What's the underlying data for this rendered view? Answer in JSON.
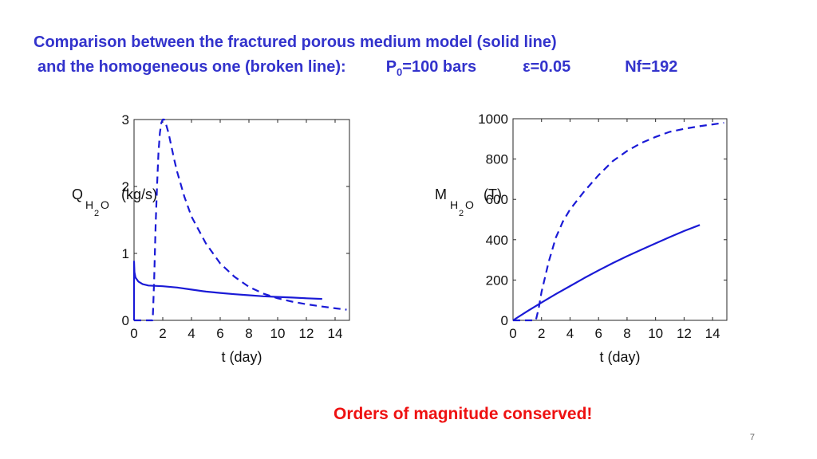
{
  "title": {
    "line1": "Comparison between the fractured porous medium model (solid line)",
    "line2": "and the homogeneous one (broken line):",
    "param_p_prefix": "P",
    "param_p_sub": "0",
    "param_p_suffix": "=100 bars",
    "param_eps": "ε=0.05",
    "param_nf": "Nf=192"
  },
  "footer_note": "Orders of magnitude conserved!",
  "slide_number": "7",
  "colors": {
    "title": "#3333cc",
    "series": "#1a1ad6",
    "note": "#ee1111"
  },
  "chart_data": [
    {
      "type": "line",
      "ylabel_main": "Q",
      "ylabel_sub1": "H",
      "ylabel_sub2": "2",
      "ylabel_sub3": "O",
      "ylabel_unit": "(kg/s)",
      "xlabel": "t (day)",
      "xlim": [
        0,
        15
      ],
      "ylim": [
        0,
        3
      ],
      "xticks": [
        0,
        2,
        4,
        6,
        8,
        10,
        12,
        14
      ],
      "yticks": [
        0,
        1,
        2,
        3
      ],
      "series": [
        {
          "name": "fractured porous medium model",
          "style": "solid",
          "x": [
            0,
            0,
            0.03,
            0.1,
            0.3,
            0.6,
            1,
            2,
            3,
            4,
            5,
            6,
            7,
            8,
            9,
            10,
            11,
            12,
            13.1
          ],
          "y": [
            0,
            0.88,
            0.72,
            0.64,
            0.58,
            0.54,
            0.52,
            0.51,
            0.49,
            0.46,
            0.43,
            0.41,
            0.39,
            0.375,
            0.36,
            0.35,
            0.34,
            0.33,
            0.32
          ]
        },
        {
          "name": "homogeneous model",
          "style": "dashed",
          "x": [
            0,
            1.3,
            1.4,
            1.5,
            1.6,
            1.7,
            1.8,
            1.9,
            2.0,
            2.1,
            2.2,
            2.4,
            2.6,
            2.8,
            3.0,
            3.5,
            4,
            5,
            6,
            7,
            8,
            9,
            10,
            11,
            12,
            13,
            14,
            14.8
          ],
          "y": [
            0,
            0,
            0.6,
            1.4,
            2.0,
            2.5,
            2.8,
            2.95,
            3.0,
            3.0,
            2.95,
            2.8,
            2.6,
            2.4,
            2.22,
            1.85,
            1.55,
            1.15,
            0.85,
            0.65,
            0.5,
            0.4,
            0.33,
            0.28,
            0.24,
            0.21,
            0.18,
            0.16
          ]
        }
      ]
    },
    {
      "type": "line",
      "ylabel_main": "M",
      "ylabel_sub1": "H",
      "ylabel_sub2": "2",
      "ylabel_sub3": "O",
      "ylabel_unit": "(T)",
      "xlabel": "t (day)",
      "xlim": [
        0,
        15
      ],
      "ylim": [
        0,
        1000
      ],
      "xticks": [
        0,
        2,
        4,
        6,
        8,
        10,
        12,
        14
      ],
      "yticks": [
        0,
        200,
        400,
        600,
        800,
        1000
      ],
      "series": [
        {
          "name": "fractured porous medium model",
          "style": "solid",
          "x": [
            0,
            1,
            2,
            3,
            4,
            5,
            6,
            7,
            8,
            9,
            10,
            11,
            12,
            13.1
          ],
          "y": [
            0,
            45,
            88,
            130,
            170,
            210,
            248,
            284,
            318,
            350,
            382,
            413,
            443,
            473
          ]
        },
        {
          "name": "homogeneous model",
          "style": "dashed",
          "x": [
            0,
            1.6,
            1.8,
            2,
            2.5,
            3,
            3.5,
            4,
            5,
            6,
            7,
            8,
            9,
            10,
            11,
            12,
            13,
            14,
            14.8
          ],
          "y": [
            0,
            0,
            60,
            140,
            290,
            410,
            490,
            550,
            640,
            720,
            790,
            840,
            880,
            910,
            935,
            950,
            962,
            972,
            980
          ]
        }
      ]
    }
  ]
}
